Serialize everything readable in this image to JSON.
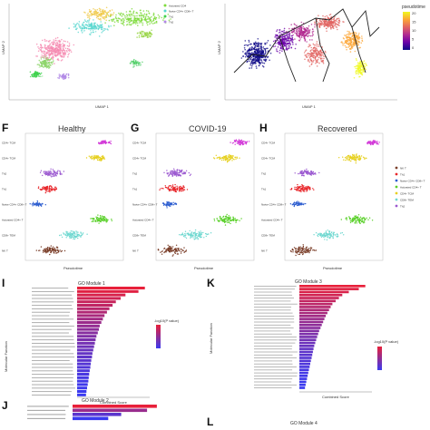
{
  "panel_letters": {
    "F": "F",
    "G": "G",
    "H": "H",
    "I": "I",
    "J": "J",
    "K": "K",
    "L": "L"
  },
  "umap": {
    "axis_x": "UMAP 1",
    "axis_y": "UMAP 2",
    "left_labels": [
      "Activated CD4+ T",
      "CD4+ TCM",
      "NK T",
      "Naive CD4+ CD8+ T",
      "Th1",
      "Th2",
      "CD4+ TCM"
    ],
    "left_legend": [
      "Activated CD4",
      "Naive CD4+ CD8+ T",
      "Th1",
      "Th2"
    ],
    "pseudotime_title": "pseudotime",
    "pseudotime_ticks": [
      "20",
      "15",
      "10",
      "5",
      "0"
    ]
  },
  "violin_row": {
    "titles": [
      "Healthy",
      "COVID-19",
      "Recovered"
    ],
    "x_axis_label": "Pseudotime",
    "row_labels": [
      "CD4+ TCM",
      "CD4+ TCM",
      "Th2",
      "Th1",
      "Naive CD4+ CD8+ T",
      "Activated CD4+ T",
      "CD8+ TEM",
      "NK T"
    ],
    "legend": [
      "NK T",
      "Th1",
      "Naive CD4+ CD8+ T",
      "Activated CD4+ T",
      "CD4+ TCM",
      "CD8+ TEM",
      "Th2"
    ]
  },
  "go_panels": {
    "I_title": "GO Module 1",
    "J_title": "GO Module 2",
    "K_title": "GO Module 3",
    "L_title": "GO Module 4",
    "x_label": "Combined Score",
    "y_label": "Molecular Function",
    "colorbar_title": "-log10(P value)"
  },
  "colors": {
    "pseudotime": [
      "#0d0887",
      "#6a00a8",
      "#b12a90",
      "#e16462",
      "#fca636",
      "#f0f921"
    ],
    "bar_low": "#3a3af0",
    "bar_high": "#e8203a",
    "violin": {
      "NK T": "#7b3f2a",
      "CD8+ TEM": "#6fd8d0",
      "Activated CD4+ T": "#5ad02a",
      "Naive CD4+ CD8+ T": "#2f5fd0",
      "Th1": "#e8262a",
      "Th2": "#9b59d0",
      "CD4+ TCM": "#e6d020",
      "CD4+ TCM 2": "#d23ad8"
    }
  },
  "chart_data": [
    {
      "type": "scatter",
      "panel": "UMAP left",
      "xlabel": "UMAP 1",
      "ylabel": "UMAP 2",
      "series": [
        {
          "name": "Activated CD4+ T",
          "values": []
        },
        {
          "name": "NK T",
          "values": []
        },
        {
          "name": "Th1",
          "values": []
        },
        {
          "name": "Th2",
          "values": []
        }
      ]
    },
    {
      "type": "scatter",
      "panel": "UMAP right",
      "xlabel": "UMAP 1",
      "ylabel": "UMAP 2",
      "colorbar": {
        "title": "pseudotime",
        "range": [
          0,
          20
        ],
        "ticks": [
          0,
          5,
          10,
          15,
          20
        ]
      }
    },
    {
      "type": "violin",
      "title": "Healthy",
      "xlabel": "Pseudotime",
      "categories": [
        "CD4+ TCM",
        "CD4+ TCM",
        "Th2",
        "Th1",
        "Naive CD4+ CD8+ T",
        "Activated CD4+ T",
        "CD8+ TEM",
        "NK T"
      ],
      "centers": [
        17,
        15.5,
        5,
        4.5,
        2,
        16,
        10,
        5
      ],
      "widths": [
        0.3,
        0.6,
        0.8,
        0.6,
        0.3,
        0.8,
        1.0,
        0.9
      ]
    },
    {
      "type": "violin",
      "title": "COVID-19",
      "xlabel": "Pseudotime",
      "categories": [
        "CD4+ TCM",
        "CD4+ TCM",
        "Th2",
        "Th1",
        "Naive CD4+ CD8+ T",
        "Activated CD4+ T",
        "CD8+ TEM",
        "NK T"
      ],
      "centers": [
        18,
        15,
        4,
        3.5,
        2,
        15,
        8,
        3
      ],
      "widths": [
        0.5,
        0.8,
        0.9,
        0.9,
        0.4,
        1.0,
        1.0,
        1.0
      ]
    },
    {
      "type": "violin",
      "title": "Recovered",
      "xlabel": "Pseudotime",
      "categories": [
        "CD4+ TCM",
        "CD4+ TCM",
        "Th2",
        "Th1",
        "Naive CD4+ CD8+ T",
        "Activated CD4+ T",
        "CD8+ TEM",
        "NK T"
      ],
      "centers": [
        19,
        15,
        4,
        3,
        2,
        15.5,
        9,
        3
      ],
      "widths": [
        0.3,
        0.9,
        0.7,
        0.8,
        0.3,
        1.0,
        1.0,
        1.0
      ]
    },
    {
      "type": "bar",
      "title": "GO Module 1",
      "xlabel": "Combined Score",
      "ylabel": "Molecular Function",
      "orientation": "horizontal",
      "values": [
        420,
        380,
        300,
        270,
        240,
        220,
        200,
        185,
        170,
        160,
        150,
        140,
        135,
        128,
        120,
        115,
        110,
        105,
        100,
        95,
        92,
        88,
        85,
        82,
        78,
        75,
        72,
        70,
        66,
        62,
        58,
        55
      ],
      "xlim": [
        0,
        450
      ]
    },
    {
      "type": "bar",
      "title": "GO Module 3",
      "xlabel": "Combined Score",
      "ylabel": "Molecular Function",
      "orientation": "horizontal",
      "values": [
        200,
        180,
        150,
        130,
        120,
        110,
        100,
        95,
        90,
        85,
        80,
        76,
        72,
        68,
        64,
        60,
        57,
        54,
        51,
        48,
        45,
        43,
        41,
        39,
        37,
        35,
        33,
        31,
        29,
        27,
        25,
        23,
        21,
        19,
        17
      ],
      "xlim": [
        0,
        220
      ]
    },
    {
      "type": "bar",
      "title": "GO Module 2",
      "orientation": "horizontal",
      "values": [
        260,
        230,
        150,
        110
      ],
      "xlim": [
        0,
        280
      ]
    }
  ]
}
